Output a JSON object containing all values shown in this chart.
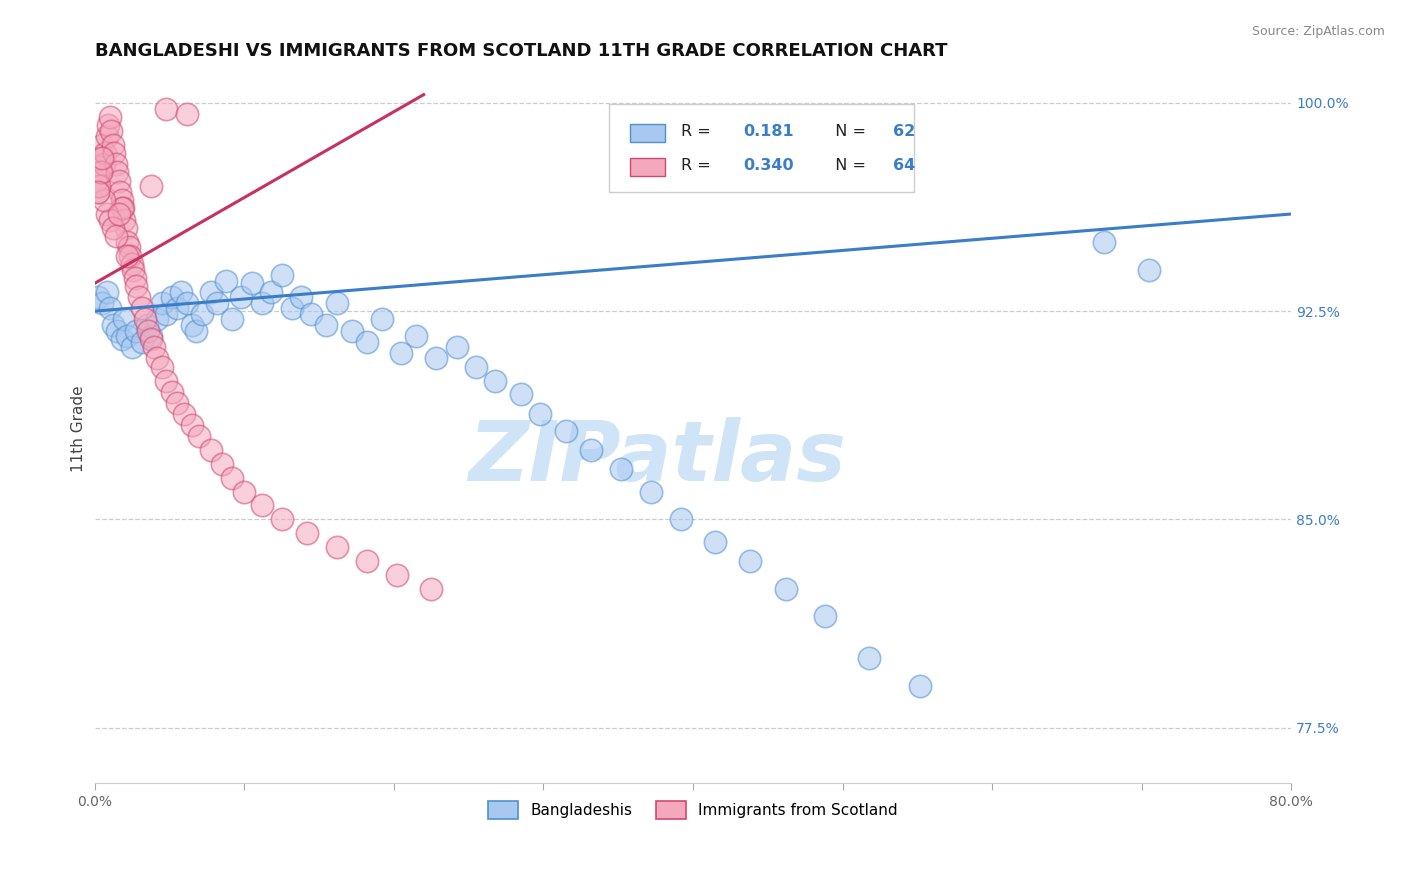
{
  "title": "BANGLADESHI VS IMMIGRANTS FROM SCOTLAND 11TH GRADE CORRELATION CHART",
  "source_text": "Source: ZipAtlas.com",
  "ylabel": "11th Grade",
  "xlim": [
    0.0,
    0.8
  ],
  "ylim": [
    0.755,
    1.01
  ],
  "x_ticks": [
    0.0,
    0.1,
    0.2,
    0.3,
    0.4,
    0.5,
    0.6,
    0.7,
    0.8
  ],
  "x_tick_labels": [
    "0.0%",
    "",
    "",
    "",
    "",
    "",
    "",
    "",
    "80.0%"
  ],
  "y_ticks_right": [
    0.775,
    0.85,
    0.925,
    1.0
  ],
  "y_tick_labels_right": [
    "77.5%",
    "85.0%",
    "92.5%",
    "100.0%"
  ],
  "grid_color": "#cccccc",
  "background_color": "#ffffff",
  "blue_color": "#a8c8f0",
  "pink_color": "#f4a8be",
  "blue_edge_color": "#5090d0",
  "pink_edge_color": "#d04870",
  "blue_line_color": "#3a7dc9",
  "pink_line_color": "#c83060",
  "legend_label_blue": "Bangladeshis",
  "legend_label_pink": "Immigrants from Scotland",
  "title_fontsize": 13,
  "axis_fontsize": 10,
  "tick_fontsize": 10,
  "watermark_text": "ZIPatlas",
  "watermark_color": "#d0e4f8",
  "watermark_fontsize": 60,
  "blue_scatter_x": [
    0.002,
    0.005,
    0.008,
    0.01,
    0.012,
    0.015,
    0.018,
    0.02,
    0.022,
    0.025,
    0.028,
    0.032,
    0.035,
    0.038,
    0.042,
    0.045,
    0.048,
    0.052,
    0.055,
    0.058,
    0.062,
    0.065,
    0.068,
    0.072,
    0.078,
    0.082,
    0.088,
    0.092,
    0.098,
    0.105,
    0.112,
    0.118,
    0.125,
    0.132,
    0.138,
    0.145,
    0.155,
    0.162,
    0.172,
    0.182,
    0.192,
    0.205,
    0.215,
    0.228,
    0.242,
    0.255,
    0.268,
    0.285,
    0.298,
    0.315,
    0.332,
    0.352,
    0.372,
    0.392,
    0.415,
    0.438,
    0.462,
    0.488,
    0.518,
    0.552,
    0.675,
    0.705
  ],
  "blue_scatter_y": [
    0.93,
    0.928,
    0.932,
    0.926,
    0.92,
    0.918,
    0.915,
    0.922,
    0.916,
    0.912,
    0.918,
    0.914,
    0.92,
    0.916,
    0.922,
    0.928,
    0.924,
    0.93,
    0.926,
    0.932,
    0.928,
    0.92,
    0.918,
    0.924,
    0.932,
    0.928,
    0.936,
    0.922,
    0.93,
    0.935,
    0.928,
    0.932,
    0.938,
    0.926,
    0.93,
    0.924,
    0.92,
    0.928,
    0.918,
    0.914,
    0.922,
    0.91,
    0.916,
    0.908,
    0.912,
    0.905,
    0.9,
    0.895,
    0.888,
    0.882,
    0.875,
    0.868,
    0.86,
    0.85,
    0.842,
    0.835,
    0.825,
    0.815,
    0.8,
    0.79,
    0.95,
    0.94
  ],
  "pink_scatter_x": [
    0.001,
    0.002,
    0.003,
    0.004,
    0.005,
    0.006,
    0.007,
    0.008,
    0.009,
    0.01,
    0.011,
    0.012,
    0.013,
    0.014,
    0.015,
    0.016,
    0.017,
    0.018,
    0.019,
    0.02,
    0.021,
    0.022,
    0.023,
    0.024,
    0.025,
    0.026,
    0.027,
    0.028,
    0.03,
    0.032,
    0.034,
    0.036,
    0.038,
    0.04,
    0.042,
    0.045,
    0.048,
    0.052,
    0.055,
    0.06,
    0.065,
    0.07,
    0.078,
    0.085,
    0.092,
    0.1,
    0.112,
    0.125,
    0.142,
    0.162,
    0.182,
    0.202,
    0.225,
    0.048,
    0.062,
    0.038,
    0.018,
    0.008,
    0.01,
    0.012,
    0.014,
    0.006,
    0.003,
    0.004,
    0.016,
    0.022,
    0.002,
    0.005
  ],
  "pink_scatter_y": [
    0.972,
    0.968,
    0.98,
    0.975,
    0.985,
    0.978,
    0.982,
    0.988,
    0.992,
    0.995,
    0.99,
    0.985,
    0.982,
    0.978,
    0.975,
    0.972,
    0.968,
    0.965,
    0.962,
    0.958,
    0.955,
    0.95,
    0.948,
    0.945,
    0.942,
    0.94,
    0.937,
    0.934,
    0.93,
    0.926,
    0.922,
    0.918,
    0.915,
    0.912,
    0.908,
    0.905,
    0.9,
    0.896,
    0.892,
    0.888,
    0.884,
    0.88,
    0.875,
    0.87,
    0.865,
    0.86,
    0.855,
    0.85,
    0.845,
    0.84,
    0.835,
    0.83,
    0.825,
    0.998,
    0.996,
    0.97,
    0.962,
    0.96,
    0.958,
    0.955,
    0.952,
    0.965,
    0.97,
    0.975,
    0.96,
    0.945,
    0.968,
    0.98
  ],
  "blue_trendline_x0": 0.0,
  "blue_trendline_x1": 0.8,
  "blue_trendline_y0": 0.925,
  "blue_trendline_y1": 0.96,
  "pink_trendline_x0": 0.0,
  "pink_trendline_x1": 0.22,
  "pink_trendline_y0": 0.935,
  "pink_trendline_y1": 1.003
}
